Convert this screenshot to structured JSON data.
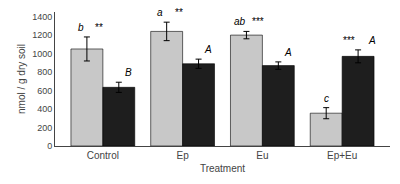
{
  "chart_data": {
    "type": "bar",
    "categories": [
      "Control",
      "Ep",
      "Eu",
      "Ep+Eu"
    ],
    "series": [
      {
        "color": "#c8c8c8",
        "values": [
          1050,
          1240,
          1200,
          355
        ],
        "errors": [
          130,
          100,
          40,
          60
        ],
        "letters": [
          "b",
          "a",
          "ab",
          "c"
        ],
        "stars": [
          "**",
          "**",
          "***",
          "***"
        ]
      },
      {
        "color": "#1e1e1e",
        "values": [
          635,
          890,
          870,
          970
        ],
        "errors": [
          55,
          50,
          40,
          70
        ],
        "letters": [
          "B",
          "A",
          "A",
          "A"
        ]
      }
    ],
    "xlabel": "Treatment",
    "ylabel": "nmol / g dry soil",
    "ylim": [
      0,
      1450
    ],
    "yticks": [
      0,
      200,
      400,
      600,
      800,
      1000,
      1200,
      1400
    ],
    "grid": false
  }
}
